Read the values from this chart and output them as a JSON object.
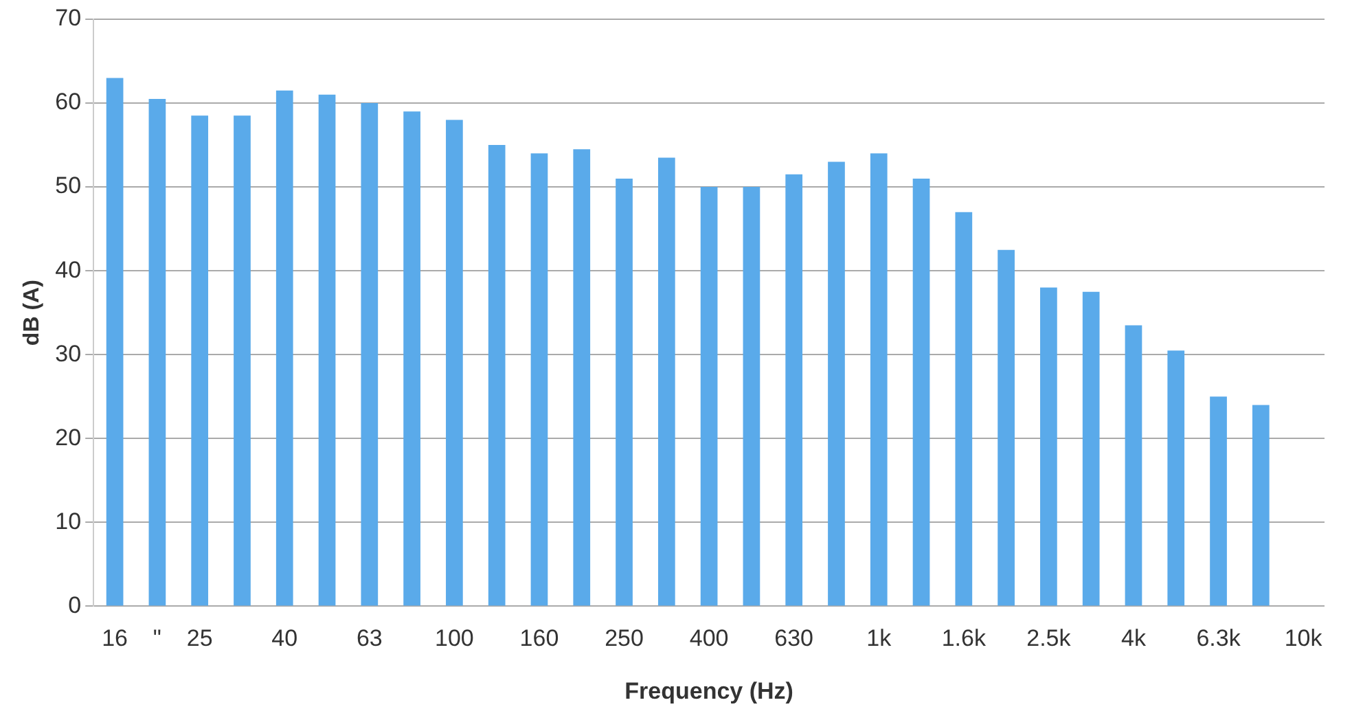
{
  "chart_data": {
    "type": "bar",
    "xlabel": "Frequency (Hz)",
    "ylabel": "dB (A)",
    "categories": [
      "16",
      "\"",
      "25",
      null,
      "40",
      null,
      "63",
      null,
      "100",
      null,
      "160",
      null,
      "250",
      null,
      "400",
      null,
      "630",
      null,
      "1k",
      null,
      "1.6k",
      null,
      "2.5k",
      null,
      "4k",
      null,
      "6.3k",
      null,
      "10k"
    ],
    "values": [
      63,
      60.5,
      58.5,
      58.5,
      61.5,
      61,
      60,
      59,
      58,
      55,
      54,
      54.5,
      51,
      53.5,
      50,
      50,
      51.5,
      53,
      54,
      51,
      47,
      42.5,
      38,
      37.5,
      33.5,
      30.5,
      25,
      24,
      null
    ],
    "color": "#5aaaea",
    "ylim": [
      0,
      70
    ],
    "yticks": [
      0,
      10,
      20,
      30,
      40,
      50,
      60,
      70
    ],
    "grid": "y"
  }
}
